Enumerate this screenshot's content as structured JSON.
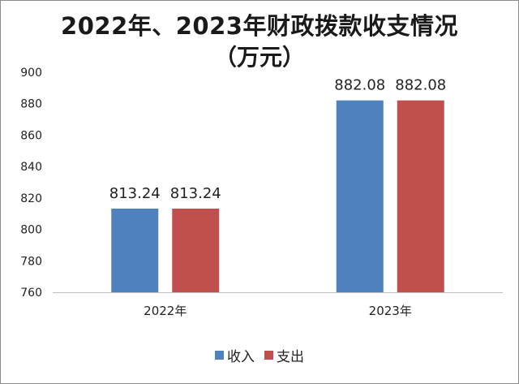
{
  "chart_data": {
    "type": "bar",
    "title": "2022年、2023年财政拨款收支情况",
    "subtitle": "（万元）",
    "categories": [
      "2022年",
      "2023年"
    ],
    "series": [
      {
        "name": "收入",
        "values": [
          813.24,
          882.08
        ],
        "color": "#4f81bd"
      },
      {
        "name": "支出",
        "values": [
          813.24,
          882.08
        ],
        "color": "#c0504d"
      }
    ],
    "ylim": [
      760,
      900
    ],
    "yticks": [
      760,
      780,
      800,
      820,
      840,
      860,
      880,
      900
    ],
    "data_labels": [
      "813.24",
      "813.24",
      "882.08",
      "882.08"
    ],
    "grid": false,
    "legend_position": "bottom"
  }
}
